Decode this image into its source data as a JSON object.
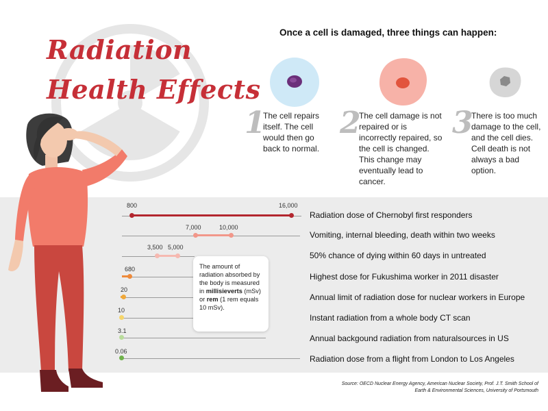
{
  "title": {
    "line1": "Radiation",
    "line2": "Health Effects"
  },
  "intro": "Once a cell is damaged, three things can happen:",
  "outcomes": [
    {
      "number": "1",
      "text": "The cell repairs itself. The cell would then go back to normal."
    },
    {
      "number": "2",
      "text": "The cell damage is not repaired or is incorrectly repaired, so the cell is changed. This change may eventually lead to cancer."
    },
    {
      "number": "3",
      "text": "There is too much damage to the cell, and the cell dies. Cell death is not always a bad option."
    }
  ],
  "callout": {
    "part1": "The amount of radiation absorbed by the body is measured in ",
    "bold1": "millisieverts",
    "part2": " (mSv) or ",
    "bold2": "rem",
    "part3": " (1 rem equals 10 mSv)."
  },
  "doses": [
    {
      "values": [
        "800",
        "16,000"
      ],
      "label": "Radiation dose of Chernobyl first responders",
      "color": "#b3262e"
    },
    {
      "values": [
        "7,000",
        "10,000"
      ],
      "label": "Vomiting, internal bleeding, death within two weeks",
      "color": "#f2978a"
    },
    {
      "values": [
        "3,500",
        "5,000"
      ],
      "label": "50% chance of dying within 60 days in untreated",
      "color": "#f6b9b1"
    },
    {
      "values": [
        "680"
      ],
      "label": "Highest dose for Fukushima worker in 2011 disaster",
      "color": "#ee8a3b"
    },
    {
      "values": [
        "20"
      ],
      "label": "Annual limit of radiation dose for nuclear workers in Europe",
      "color": "#f0a83a"
    },
    {
      "values": [
        "10"
      ],
      "label": "Instant radiation from a whole body CT scan",
      "color": "#f6d66b"
    },
    {
      "values": [
        "3.1"
      ],
      "label": "Annual backgound radiation from naturalsources in US",
      "color": "#b9dc9b"
    },
    {
      "values": [
        "0.06"
      ],
      "label": "Radiation dose from a flight from London to Los Angeles",
      "color": "#6fb24a"
    }
  ],
  "source": "Source: OECD Nuclear Energy Agency, American Nuclear Society, Prof. J.T. Smith School of Earth & Environmental Sciences, University of Portsmouth"
}
